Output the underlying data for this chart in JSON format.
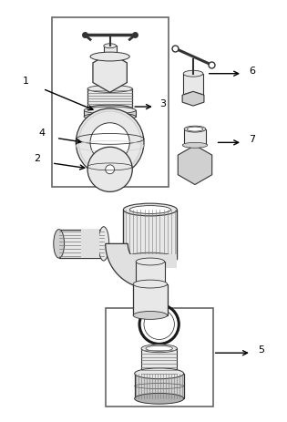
{
  "background_color": "#ffffff",
  "line_color": "#333333",
  "light_fill": "#e8e8e8",
  "mid_fill": "#d0d0d0",
  "dark_fill": "#b0b0b0",
  "thread_color": "#666666",
  "box_color": "#666666",
  "arrow_color": "#000000"
}
